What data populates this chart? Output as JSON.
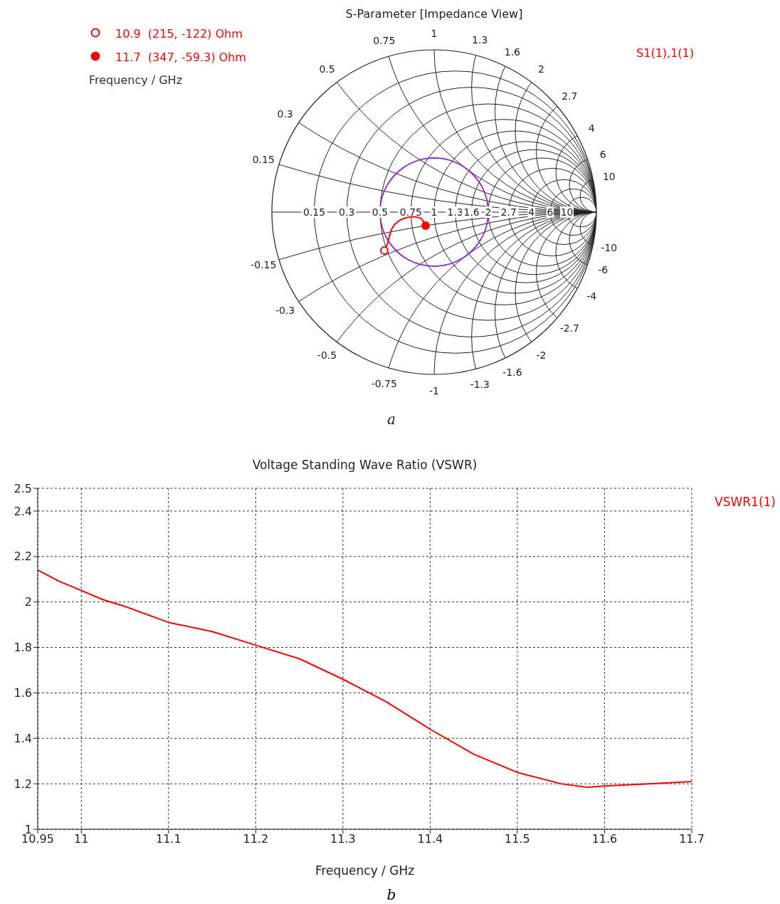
{
  "chart_data": [
    {
      "type": "other",
      "title": "S-Parameter [Impedance View]",
      "legend_title": "Frequency / GHz",
      "series": [
        {
          "name": "S1(1),1(1)",
          "color": "#ff0000"
        }
      ],
      "annotations": [
        "10.9  (215, -122) Ohm",
        "11.7  (347, -59.3) Ohm",
        "a",
        "0.15",
        "0.3",
        "0.5",
        "0.75",
        "1",
        "1.3",
        "1.6",
        "2",
        "2.7",
        "4",
        "6",
        "10",
        "0.15",
        "0.3",
        "0.5",
        "0.75",
        "1",
        "1.3",
        "1.6",
        "2",
        "2.7",
        "4",
        "6",
        "10",
        "-0.15",
        "-0.3",
        "-0.5",
        "-0.75",
        "-1",
        "-1.3",
        "-1.6",
        "-2",
        "-2.7",
        "-4",
        "-6",
        "-10"
      ]
    },
    {
      "type": "line",
      "title": "Voltage Standing Wave Ratio (VSWR)",
      "xlabel": "Frequency / GHz",
      "annotations": [
        "b"
      ],
      "x": [
        10.95,
        10.975,
        11.0,
        11.025,
        11.05,
        11.1,
        11.15,
        11.2,
        11.25,
        11.3,
        11.35,
        11.4,
        11.45,
        11.5,
        11.55,
        11.58,
        11.6,
        11.65,
        11.7
      ],
      "series": [
        {
          "name": "VSWR1(1)",
          "color": "#ff0000",
          "values": [
            2.14,
            2.09,
            2.05,
            2.01,
            1.98,
            1.91,
            1.87,
            1.81,
            1.75,
            1.66,
            1.56,
            1.44,
            1.33,
            1.25,
            1.2,
            1.185,
            1.19,
            1.2,
            1.21
          ]
        }
      ],
      "xlim": [
        10.95,
        11.7
      ],
      "xticks": [
        10.95,
        11,
        11.1,
        11.2,
        11.3,
        11.4,
        11.5,
        11.6,
        11.7
      ],
      "ylim": [
        1,
        2.5
      ],
      "yticks": [
        1,
        1.2,
        1.4,
        1.6,
        1.8,
        2,
        2.2,
        2.4,
        2.5
      ],
      "grid": true,
      "line_style": "solid",
      "marker": "none",
      "legend": "top right"
    }
  ]
}
